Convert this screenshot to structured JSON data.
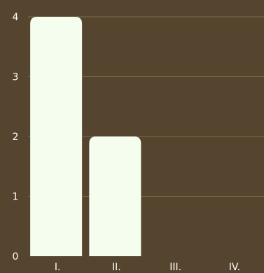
{
  "chart_data": {
    "type": "bar",
    "categories": [
      "I.",
      "II.",
      "III.",
      "IV."
    ],
    "values": [
      4,
      2,
      0,
      0
    ],
    "ylim": [
      0,
      4
    ],
    "yticks": [
      "0",
      "1",
      "2",
      "3",
      "4"
    ],
    "grid": true,
    "legend": "none",
    "colors": {
      "background": "#55452e",
      "bar": "#f5fdef",
      "grid": "#7a6a4f",
      "text": "#ffffff"
    }
  }
}
